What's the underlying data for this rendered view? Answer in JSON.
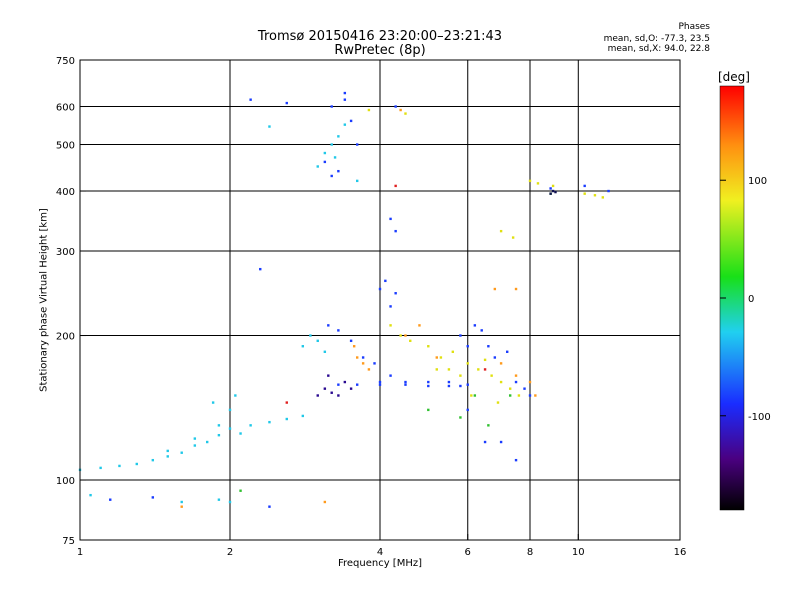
{
  "chart_data": {
    "type": "scatter",
    "title": "Tromsø 20150416 23:20:00–23:21:43",
    "subtitle": "RwPretec (8p)",
    "phase_stats": {
      "heading": "Phases",
      "line_o": "mean, sd,O: -77.3, 23.5",
      "line_x": "mean, sd,X:  94.0, 22.8"
    },
    "xlabel": "Frequency [MHz]",
    "ylabel": "Stationary phase Virtual Height [km]",
    "x_scale": "log",
    "y_scale": "log",
    "xlim": [
      1,
      16
    ],
    "ylim": [
      75,
      750
    ],
    "x_ticks": [
      1,
      2,
      4,
      6,
      8,
      10,
      16
    ],
    "x_tick_labels": [
      "1",
      "2",
      "4",
      "6",
      "8",
      "10",
      "16"
    ],
    "x_grid": [
      2,
      4,
      6,
      8,
      10
    ],
    "y_ticks": [
      75,
      100,
      200,
      300,
      400,
      500,
      600,
      750
    ],
    "y_tick_labels": [
      "75",
      "100",
      "200",
      "300",
      "400",
      "500",
      "600",
      "750"
    ],
    "y_grid": [
      100,
      200,
      300,
      400,
      500,
      600
    ],
    "grid": true,
    "colorbar": {
      "label": "[deg]",
      "range": [
        -180,
        180
      ],
      "ticks": [
        100,
        0,
        -100
      ],
      "tick_labels": [
        "100",
        "0",
        "-100"
      ],
      "colormap": "rainbow"
    },
    "series": [
      {
        "color": "#20c8e8",
        "points": [
          [
            1.0,
            105
          ],
          [
            1.1,
            106
          ],
          [
            1.2,
            107
          ],
          [
            1.3,
            108
          ],
          [
            1.4,
            110
          ],
          [
            1.5,
            112
          ],
          [
            1.6,
            114
          ],
          [
            1.7,
            118
          ],
          [
            1.8,
            120
          ],
          [
            1.9,
            124
          ],
          [
            2.0,
            128
          ],
          [
            2.1,
            125
          ],
          [
            2.2,
            130
          ],
          [
            2.4,
            132
          ],
          [
            2.6,
            134
          ],
          [
            2.8,
            136
          ],
          [
            1.5,
            115
          ],
          [
            1.7,
            122
          ],
          [
            1.9,
            130
          ],
          [
            2.0,
            140
          ],
          [
            2.05,
            150
          ],
          [
            1.85,
            145
          ],
          [
            2.8,
            190
          ],
          [
            2.9,
            200
          ],
          [
            3.0,
            195
          ],
          [
            3.1,
            185
          ],
          [
            3.0,
            450
          ],
          [
            3.1,
            480
          ],
          [
            3.2,
            500
          ],
          [
            3.3,
            520
          ],
          [
            3.4,
            550
          ],
          [
            3.25,
            470
          ],
          [
            3.6,
            420
          ],
          [
            2.4,
            545
          ],
          [
            1.05,
            93
          ],
          [
            1.6,
            90
          ],
          [
            1.9,
            91
          ],
          [
            2.0,
            90
          ]
        ]
      },
      {
        "color": "#1a3cff",
        "points": [
          [
            3.2,
            600
          ],
          [
            3.4,
            620
          ],
          [
            3.5,
            560
          ],
          [
            3.6,
            500
          ],
          [
            3.1,
            460
          ],
          [
            3.2,
            430
          ],
          [
            3.3,
            440
          ],
          [
            3.4,
            640
          ],
          [
            3.15,
            210
          ],
          [
            3.3,
            205
          ],
          [
            3.5,
            195
          ],
          [
            3.7,
            180
          ],
          [
            3.9,
            175
          ],
          [
            4.0,
            160
          ],
          [
            4.2,
            165
          ],
          [
            4.5,
            160
          ],
          [
            5.0,
            160
          ],
          [
            5.5,
            160
          ],
          [
            6.0,
            158
          ],
          [
            3.3,
            158
          ],
          [
            3.6,
            158
          ],
          [
            4.0,
            158
          ],
          [
            4.5,
            158
          ],
          [
            5.0,
            157
          ],
          [
            5.5,
            157
          ],
          [
            5.8,
            157
          ],
          [
            4.0,
            250
          ],
          [
            4.1,
            260
          ],
          [
            4.3,
            245
          ],
          [
            4.2,
            230
          ],
          [
            5.8,
            200
          ],
          [
            6.0,
            190
          ],
          [
            6.2,
            210
          ],
          [
            6.4,
            205
          ],
          [
            6.6,
            190
          ],
          [
            6.8,
            180
          ],
          [
            7.2,
            185
          ],
          [
            7.5,
            160
          ],
          [
            7.8,
            155
          ],
          [
            8.0,
            150
          ],
          [
            6.0,
            140
          ],
          [
            6.5,
            120
          ],
          [
            7.0,
            120
          ],
          [
            7.5,
            110
          ],
          [
            2.2,
            620
          ],
          [
            2.6,
            610
          ],
          [
            4.3,
            600
          ],
          [
            2.3,
            275
          ],
          [
            1.15,
            91
          ],
          [
            1.4,
            92
          ],
          [
            2.4,
            88
          ],
          [
            8.8,
            405
          ],
          [
            10.3,
            410
          ],
          [
            11.5,
            400
          ],
          [
            4.2,
            350
          ],
          [
            4.3,
            330
          ]
        ]
      },
      {
        "color": "#2a0a90",
        "points": [
          [
            3.1,
            155
          ],
          [
            3.2,
            152
          ],
          [
            3.3,
            150
          ],
          [
            3.4,
            160
          ],
          [
            3.15,
            165
          ],
          [
            3.5,
            155
          ],
          [
            3.0,
            150
          ]
        ]
      },
      {
        "color": "#ff9a1c",
        "points": [
          [
            3.6,
            180
          ],
          [
            3.7,
            175
          ],
          [
            3.8,
            170
          ],
          [
            3.55,
            190
          ],
          [
            4.5,
            200
          ],
          [
            4.8,
            210
          ],
          [
            5.2,
            180
          ],
          [
            7.0,
            175
          ],
          [
            7.5,
            165
          ],
          [
            8.0,
            160
          ],
          [
            8.2,
            150
          ],
          [
            1.6,
            88
          ],
          [
            3.1,
            90
          ],
          [
            4.4,
            590
          ],
          [
            6.8,
            250
          ],
          [
            7.5,
            250
          ]
        ]
      },
      {
        "color": "#e0e010",
        "points": [
          [
            4.2,
            210
          ],
          [
            4.4,
            200
          ],
          [
            4.6,
            195
          ],
          [
            5.0,
            190
          ],
          [
            5.3,
            180
          ],
          [
            5.6,
            185
          ],
          [
            6.0,
            175
          ],
          [
            6.3,
            170
          ],
          [
            6.7,
            165
          ],
          [
            7.0,
            160
          ],
          [
            7.3,
            155
          ],
          [
            7.6,
            150
          ],
          [
            5.2,
            170
          ],
          [
            5.8,
            165
          ],
          [
            6.5,
            178
          ],
          [
            7.0,
            330
          ],
          [
            7.4,
            320
          ],
          [
            8.0,
            420
          ],
          [
            8.3,
            415
          ],
          [
            8.9,
            410
          ],
          [
            10.3,
            395
          ],
          [
            10.8,
            392
          ],
          [
            11.2,
            388
          ],
          [
            5.5,
            170
          ],
          [
            6.1,
            150
          ],
          [
            6.9,
            145
          ],
          [
            3.8,
            590
          ],
          [
            4.5,
            580
          ]
        ]
      },
      {
        "color": "#30c030",
        "points": [
          [
            5.0,
            140
          ],
          [
            6.2,
            150
          ],
          [
            6.6,
            130
          ],
          [
            5.8,
            135
          ],
          [
            7.3,
            150
          ],
          [
            8.8,
            395
          ],
          [
            2.1,
            95
          ]
        ]
      },
      {
        "color": "#e02020",
        "points": [
          [
            2.6,
            145
          ],
          [
            4.3,
            410
          ],
          [
            6.5,
            170
          ]
        ]
      },
      {
        "color": "#101050",
        "points": [
          [
            8.9,
            400
          ],
          [
            9.0,
            398
          ],
          [
            8.8,
            395
          ]
        ]
      }
    ]
  }
}
